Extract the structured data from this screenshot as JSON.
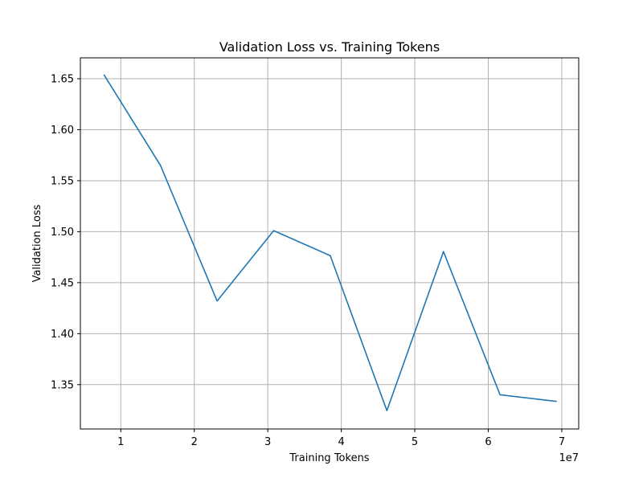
{
  "chart_data": {
    "type": "line",
    "title": "Validation Loss vs. Training Tokens",
    "xlabel": "Training Tokens",
    "ylabel": "Validation Loss",
    "x_offset_label": "1e7",
    "x_scale_factor": 10000000,
    "xlim": [
      4500000,
      72300000
    ],
    "ylim": [
      1.3065,
      1.6705
    ],
    "x_ticks": [
      10000000,
      20000000,
      30000000,
      40000000,
      50000000,
      60000000,
      70000000
    ],
    "x_tick_labels": [
      "1",
      "2",
      "3",
      "4",
      "5",
      "6",
      "7"
    ],
    "y_ticks": [
      1.35,
      1.4,
      1.45,
      1.5,
      1.55,
      1.6,
      1.65
    ],
    "y_tick_labels": [
      "1.35",
      "1.40",
      "1.45",
      "1.50",
      "1.55",
      "1.60",
      "1.65"
    ],
    "grid": true,
    "line_color": "#1f77b4",
    "series": [
      {
        "x": [
          7700000,
          15400000,
          23100000,
          30800000,
          38500000,
          46200000,
          53900000,
          61600000,
          69300000
        ],
        "y": [
          1.654,
          1.565,
          1.432,
          1.501,
          1.4765,
          1.3245,
          1.4805,
          1.34,
          1.3335
        ]
      }
    ]
  }
}
